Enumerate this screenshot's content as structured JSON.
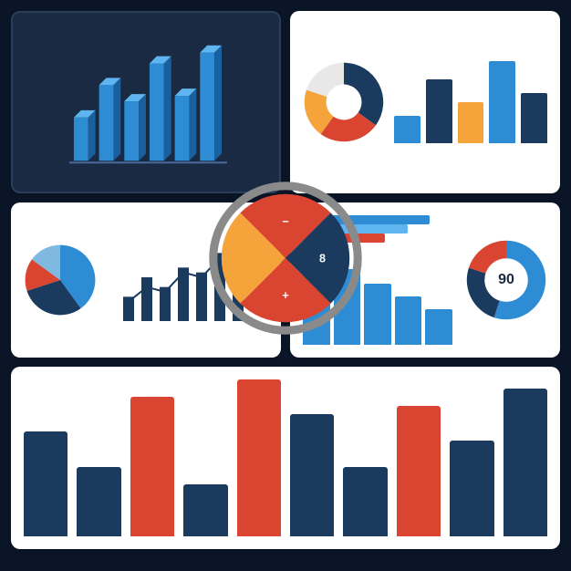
{
  "background_color": "#0a1628",
  "panel_bg": "#ffffff",
  "panel_dark_bg": "#1a2a42",
  "panel1": {
    "type": "bar",
    "isometric": true,
    "bar_color": "#2d8cd4",
    "bar_top_color": "#5fb5ef",
    "bar_side_color": "#1a5f9e",
    "values": [
      40,
      70,
      55,
      90,
      60,
      100
    ],
    "baseline_color": "#4a6a9a",
    "bg": "#1a2a42"
  },
  "panel2": {
    "type": "donut+bar",
    "donut": {
      "slices": [
        {
          "value": 35,
          "color": "#1a3a5e"
        },
        {
          "value": 25,
          "color": "#d94530"
        },
        {
          "value": 20,
          "color": "#f5a33b"
        },
        {
          "value": 20,
          "color": "#e8e8e8"
        }
      ],
      "inner_radius_pct": 45
    },
    "bars": {
      "values": [
        30,
        70,
        45,
        90,
        55
      ],
      "colors": [
        "#2d8cd4",
        "#1a3a5e",
        "#f5a33b",
        "#2d8cd4",
        "#1a3a5e"
      ]
    }
  },
  "panel3": {
    "type": "pie+line",
    "pie": {
      "slices": [
        {
          "value": 40,
          "color": "#2d8cd4"
        },
        {
          "value": 30,
          "color": "#1a3a5e"
        },
        {
          "value": 15,
          "color": "#d94530"
        },
        {
          "value": 15,
          "color": "#7fb8e0"
        }
      ]
    },
    "bars": {
      "values": [
        25,
        45,
        35,
        55,
        50,
        70,
        60
      ],
      "color": "#1a3a5e"
    },
    "line": {
      "points": [
        20,
        35,
        30,
        50,
        45,
        65,
        75
      ],
      "color": "#1a3a5e",
      "marker_color": "#1a3a5e"
    }
  },
  "panel4": {
    "type": "bar+donut",
    "legend_rows": [
      {
        "width_pct": 85,
        "color": "#2d8cd4"
      },
      {
        "width_pct": 70,
        "color": "#5fb5ef"
      },
      {
        "width_pct": 55,
        "color": "#d94530"
      }
    ],
    "bars": {
      "values": [
        90,
        75,
        60,
        48,
        35
      ],
      "color": "#2d8cd4"
    },
    "donut": {
      "slices": [
        {
          "value": 55,
          "color": "#2d8cd4"
        },
        {
          "value": 25,
          "color": "#1a3a5e"
        },
        {
          "value": 20,
          "color": "#d94530"
        }
      ],
      "inner_radius_pct": 55,
      "center_label": "90"
    }
  },
  "panel5": {
    "type": "bar",
    "values": [
      60,
      40,
      80,
      30,
      90,
      70,
      40,
      75,
      55,
      85
    ],
    "base_color": "#1a3a5e",
    "highlight_color": "#d94530",
    "highlight_indices": [
      2,
      4,
      7
    ]
  },
  "center_pie": {
    "type": "pie",
    "ring_color": "#8a8a8a",
    "ring_width": 10,
    "slices": [
      {
        "value": 25,
        "color": "#d94530",
        "icon": "−"
      },
      {
        "value": 25,
        "color": "#1a3a5e",
        "icon": "8"
      },
      {
        "value": 25,
        "color": "#d94530",
        "icon": "+"
      },
      {
        "value": 25,
        "color": "#f5a33b",
        "icon": ""
      }
    ]
  }
}
